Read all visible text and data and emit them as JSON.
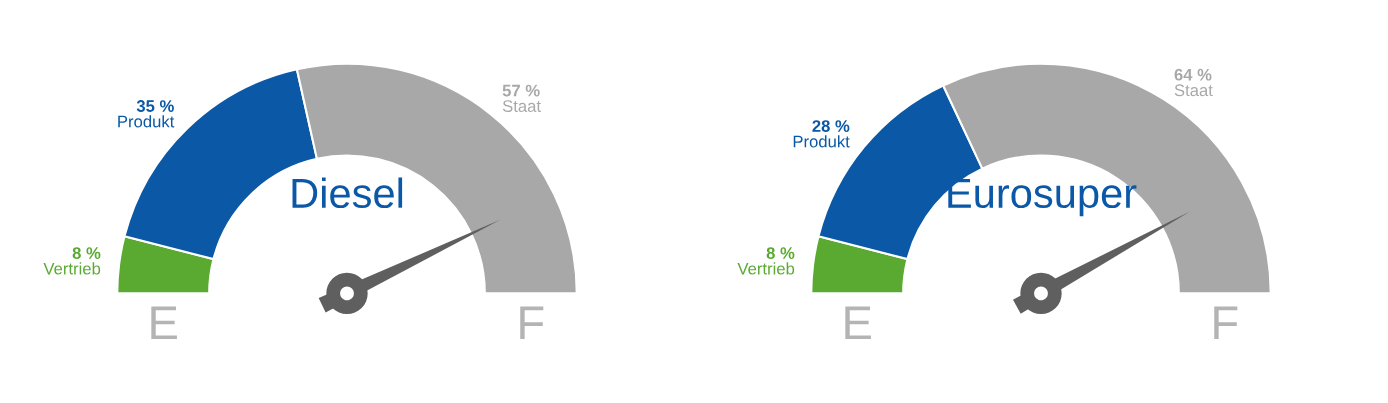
{
  "chart_data": [
    {
      "type": "donut",
      "title": "Diesel",
      "categories": [
        "Vertrieb",
        "Produkt",
        "Staat"
      ],
      "values": [
        8,
        35,
        57
      ],
      "colors": [
        "#5aaa32",
        "#0a58a6",
        "#a8a8a8"
      ],
      "value_labels": [
        "8 %",
        "35 %",
        "57 %"
      ],
      "needle": "Staat",
      "annotations": [
        "E",
        "F"
      ]
    },
    {
      "type": "donut",
      "title": "Eurosuper",
      "categories": [
        "Vertrieb",
        "Produkt",
        "Staat"
      ],
      "values": [
        8,
        28,
        64
      ],
      "colors": [
        "#5aaa32",
        "#0a58a6",
        "#a8a8a8"
      ],
      "value_labels": [
        "8 %",
        "28 %",
        "64 %"
      ],
      "needle": "Staat",
      "annotations": [
        "E",
        "F"
      ]
    }
  ]
}
